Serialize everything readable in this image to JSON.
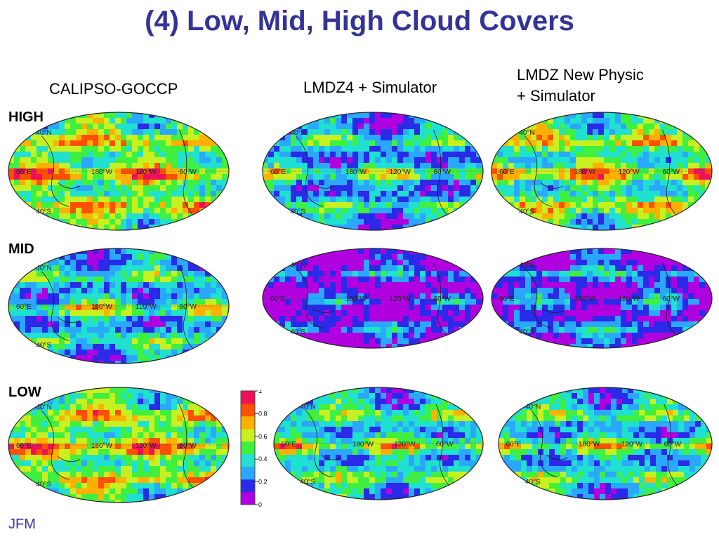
{
  "title": "(4) Low, Mid, High Cloud Covers",
  "columns": [
    {
      "label_lines": [
        "CALIPSO-GOCCP"
      ]
    },
    {
      "label_lines": [
        "LMDZ4 + Simulator"
      ]
    },
    {
      "label_lines": [
        "LMDZ New Physic",
        "+ Simulator"
      ]
    }
  ],
  "rows": [
    {
      "label": "HIGH"
    },
    {
      "label": "MID"
    },
    {
      "label": "LOW"
    }
  ],
  "map_labels": {
    "lat_north": "40°N",
    "lat_south": "40°S",
    "lon_60e": "60°E",
    "lon_180w": "180°W",
    "lon_120w": "120°W",
    "lon_60w": "60°W"
  },
  "colorbar": {
    "ticks": [
      "0",
      "0.2",
      "0.4",
      "0.6",
      "0.8",
      "1"
    ],
    "range": [
      0,
      1
    ],
    "colors": [
      "#b000e0",
      "#2a2ae8",
      "#2aa8ff",
      "#20e0d0",
      "#40f040",
      "#c8f020",
      "#ffb000",
      "#ff5000",
      "#f0105a"
    ]
  },
  "season_label": "JFM",
  "panels": [
    {
      "row": "high",
      "col": "calipso",
      "level": 0.45
    },
    {
      "row": "high",
      "col": "lmdz4",
      "level": 0.22
    },
    {
      "row": "high",
      "col": "lmdznp",
      "level": 0.4
    },
    {
      "row": "mid",
      "col": "calipso",
      "level": 0.25
    },
    {
      "row": "mid",
      "col": "lmdz4",
      "level": 0.05
    },
    {
      "row": "mid",
      "col": "lmdznp",
      "level": 0.1
    },
    {
      "row": "low",
      "col": "calipso",
      "level": 0.45
    },
    {
      "row": "low",
      "col": "lmdz4",
      "level": 0.3
    },
    {
      "row": "low",
      "col": "lmdznp",
      "level": 0.28
    }
  ]
}
